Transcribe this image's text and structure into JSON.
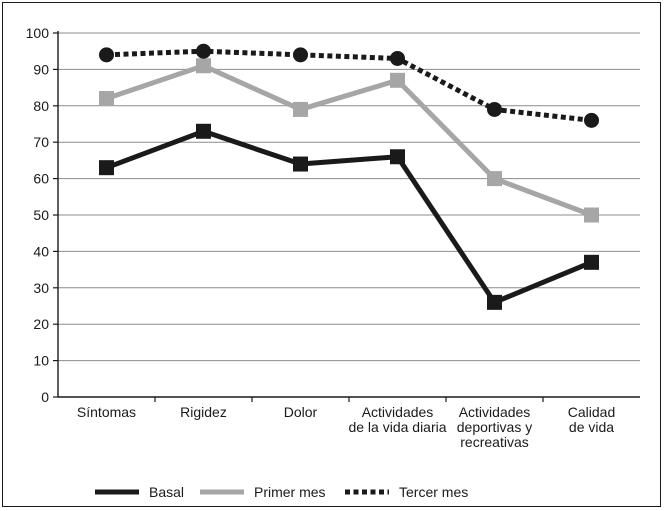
{
  "chart_data": {
    "type": "line",
    "categories": [
      [
        "Síntomas"
      ],
      [
        "Rigidez"
      ],
      [
        "Dolor"
      ],
      [
        "Actividades",
        "de la vida diaria"
      ],
      [
        "Actividades",
        "deportivas y",
        "recreativas"
      ],
      [
        "Calidad",
        "de vida"
      ]
    ],
    "ylim": [
      0,
      100
    ],
    "yticks": [
      0,
      10,
      20,
      30,
      40,
      50,
      60,
      70,
      80,
      90,
      100
    ],
    "grid": true,
    "legend_position": "bottom",
    "series": [
      {
        "name": "Basal",
        "values": [
          63,
          73,
          64,
          66,
          26,
          37
        ],
        "color": "#1a1a1a",
        "marker": "square",
        "line": "solid"
      },
      {
        "name": "Primer mes",
        "values": [
          82,
          91,
          79,
          87,
          60,
          50
        ],
        "color": "#a6a6a6",
        "marker": "square",
        "line": "solid"
      },
      {
        "name": "Tercer mes",
        "values": [
          94,
          95,
          94,
          93,
          79,
          76
        ],
        "color": "#1a1a1a",
        "marker": "circle",
        "line": "dotted"
      }
    ]
  }
}
